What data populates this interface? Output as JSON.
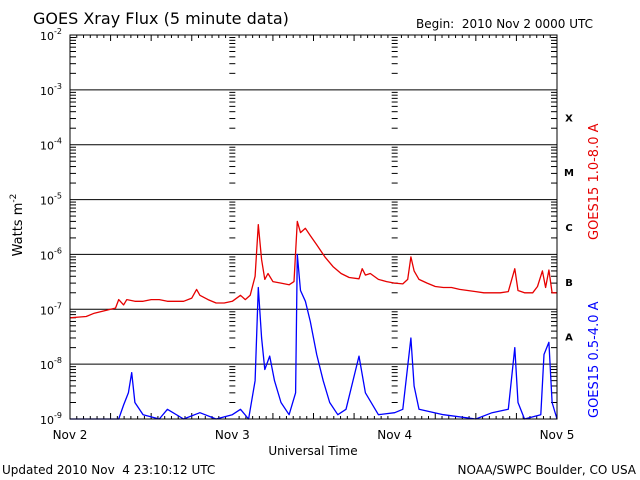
{
  "chart_data": {
    "type": "line",
    "title": "GOES Xray Flux (5 minute data)",
    "begin_label": "Begin:  2010 Nov 2 0000 UTC",
    "xlabel": "Universal Time",
    "ylabel": "Watts m",
    "ylabel_exponent": "-2",
    "y_scale": "log",
    "ylim": [
      1e-09,
      0.01
    ],
    "y_ticks": [
      {
        "mantissa": "10",
        "exp": "-2"
      },
      {
        "mantissa": "10",
        "exp": "-3"
      },
      {
        "mantissa": "10",
        "exp": "-4"
      },
      {
        "mantissa": "10",
        "exp": "-5"
      },
      {
        "mantissa": "10",
        "exp": "-6"
      },
      {
        "mantissa": "10",
        "exp": "-7"
      },
      {
        "mantissa": "10",
        "exp": "-8"
      },
      {
        "mantissa": "10",
        "exp": "-9"
      }
    ],
    "x_ticks": [
      "Nov 2",
      "Nov 3",
      "Nov 4",
      "Nov 5"
    ],
    "xlim_days": [
      0,
      3
    ],
    "flare_classes": [
      "X",
      "M",
      "C",
      "B",
      "A"
    ],
    "updated_label": "Updated 2010 Nov  4 23:10:12 UTC",
    "credit_label": "NOAA/SWPC Boulder, CO USA",
    "series": [
      {
        "name": "GOES15 1.0-8.0 A",
        "color": "#e60000",
        "points": [
          [
            0.0,
            7e-08
          ],
          [
            0.05,
            7.2e-08
          ],
          [
            0.1,
            7.4e-08
          ],
          [
            0.15,
            8.5e-08
          ],
          [
            0.2,
            9.2e-08
          ],
          [
            0.25,
            1e-07
          ],
          [
            0.28,
            1.05e-07
          ],
          [
            0.3,
            1.5e-07
          ],
          [
            0.33,
            1.2e-07
          ],
          [
            0.35,
            1.5e-07
          ],
          [
            0.4,
            1.4e-07
          ],
          [
            0.45,
            1.4e-07
          ],
          [
            0.5,
            1.5e-07
          ],
          [
            0.55,
            1.5e-07
          ],
          [
            0.6,
            1.4e-07
          ],
          [
            0.7,
            1.4e-07
          ],
          [
            0.75,
            1.6e-07
          ],
          [
            0.78,
            2.3e-07
          ],
          [
            0.8,
            1.8e-07
          ],
          [
            0.85,
            1.5e-07
          ],
          [
            0.9,
            1.3e-07
          ],
          [
            0.95,
            1.3e-07
          ],
          [
            1.0,
            1.4e-07
          ],
          [
            1.05,
            1.8e-07
          ],
          [
            1.08,
            1.5e-07
          ],
          [
            1.11,
            1.8e-07
          ],
          [
            1.14,
            4e-07
          ],
          [
            1.16,
            3.5e-06
          ],
          [
            1.18,
            8e-07
          ],
          [
            1.2,
            3.5e-07
          ],
          [
            1.22,
            4.5e-07
          ],
          [
            1.25,
            3.2e-07
          ],
          [
            1.3,
            3e-07
          ],
          [
            1.35,
            2.8e-07
          ],
          [
            1.38,
            3.2e-07
          ],
          [
            1.4,
            4e-06
          ],
          [
            1.42,
            2.5e-06
          ],
          [
            1.45,
            3e-06
          ],
          [
            1.48,
            2.2e-06
          ],
          [
            1.52,
            1.5e-06
          ],
          [
            1.57,
            9e-07
          ],
          [
            1.62,
            6e-07
          ],
          [
            1.67,
            4.5e-07
          ],
          [
            1.72,
            3.8e-07
          ],
          [
            1.78,
            3.6e-07
          ],
          [
            1.8,
            5.5e-07
          ],
          [
            1.82,
            4.2e-07
          ],
          [
            1.85,
            4.5e-07
          ],
          [
            1.9,
            3.5e-07
          ],
          [
            1.95,
            3.2e-07
          ],
          [
            2.0,
            3e-07
          ],
          [
            2.05,
            2.9e-07
          ],
          [
            2.08,
            3.5e-07
          ],
          [
            2.1,
            9e-07
          ],
          [
            2.12,
            5e-07
          ],
          [
            2.15,
            3.5e-07
          ],
          [
            2.2,
            3e-07
          ],
          [
            2.25,
            2.6e-07
          ],
          [
            2.3,
            2.5e-07
          ],
          [
            2.35,
            2.5e-07
          ],
          [
            2.4,
            2.3e-07
          ],
          [
            2.45,
            2.2e-07
          ],
          [
            2.5,
            2.1e-07
          ],
          [
            2.55,
            2e-07
          ],
          [
            2.6,
            2e-07
          ],
          [
            2.65,
            2e-07
          ],
          [
            2.7,
            2.1e-07
          ],
          [
            2.74,
            5.5e-07
          ],
          [
            2.76,
            2.2e-07
          ],
          [
            2.8,
            2e-07
          ],
          [
            2.85,
            2e-07
          ],
          [
            2.88,
            2.6e-07
          ],
          [
            2.91,
            5e-07
          ],
          [
            2.93,
            2.5e-07
          ],
          [
            2.95,
            5.2e-07
          ],
          [
            2.97,
            2e-07
          ],
          [
            3.0,
            2e-07
          ]
        ]
      },
      {
        "name": "GOES15 0.5-4.0 A",
        "color": "#0000ff",
        "points": [
          [
            0.0,
            1e-09
          ],
          [
            0.2,
            1e-09
          ],
          [
            0.3,
            1e-09
          ],
          [
            0.33,
            1.8e-09
          ],
          [
            0.36,
            3e-09
          ],
          [
            0.38,
            7e-09
          ],
          [
            0.4,
            2e-09
          ],
          [
            0.45,
            1.2e-09
          ],
          [
            0.55,
            1e-09
          ],
          [
            0.6,
            1.5e-09
          ],
          [
            0.7,
            1e-09
          ],
          [
            0.8,
            1.3e-09
          ],
          [
            0.9,
            1e-09
          ],
          [
            1.0,
            1.2e-09
          ],
          [
            1.05,
            1.5e-09
          ],
          [
            1.1,
            1e-09
          ],
          [
            1.14,
            5e-09
          ],
          [
            1.16,
            2.5e-07
          ],
          [
            1.18,
            3e-08
          ],
          [
            1.2,
            8e-09
          ],
          [
            1.23,
            1.4e-08
          ],
          [
            1.26,
            5e-09
          ],
          [
            1.3,
            2e-09
          ],
          [
            1.35,
            1.2e-09
          ],
          [
            1.39,
            3e-09
          ],
          [
            1.4,
            1e-06
          ],
          [
            1.42,
            2.2e-07
          ],
          [
            1.45,
            1.4e-07
          ],
          [
            1.48,
            6e-08
          ],
          [
            1.52,
            1.5e-08
          ],
          [
            1.56,
            5e-09
          ],
          [
            1.6,
            2e-09
          ],
          [
            1.65,
            1.2e-09
          ],
          [
            1.7,
            1.5e-09
          ],
          [
            1.78,
            1.4e-08
          ],
          [
            1.82,
            3e-09
          ],
          [
            1.9,
            1.2e-09
          ],
          [
            2.0,
            1.3e-09
          ],
          [
            2.05,
            1.5e-09
          ],
          [
            2.1,
            3e-08
          ],
          [
            2.12,
            4e-09
          ],
          [
            2.15,
            1.5e-09
          ],
          [
            2.3,
            1.2e-09
          ],
          [
            2.5,
            1e-09
          ],
          [
            2.6,
            1.3e-09
          ],
          [
            2.7,
            1.5e-09
          ],
          [
            2.74,
            2e-08
          ],
          [
            2.76,
            2e-09
          ],
          [
            2.8,
            1e-09
          ],
          [
            2.9,
            1.2e-09
          ],
          [
            2.92,
            1.5e-08
          ],
          [
            2.95,
            2.5e-08
          ],
          [
            2.97,
            2e-09
          ],
          [
            3.0,
            1e-09
          ]
        ]
      }
    ]
  }
}
